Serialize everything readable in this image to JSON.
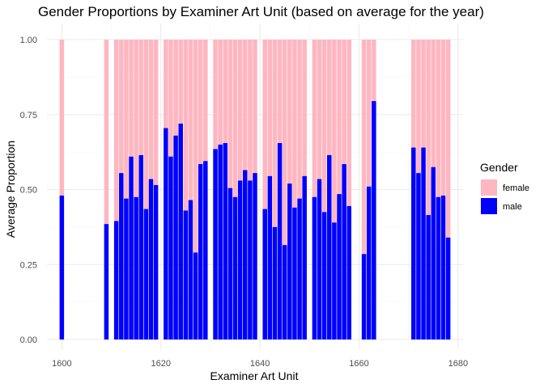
{
  "chart_data": {
    "type": "bar",
    "stacked": true,
    "title": "Gender Proportions by Examiner Art Unit (based on average for the year)",
    "xlabel": "Examiner Art Unit",
    "ylabel": "Average Proportion",
    "xlim": [
      1597,
      1681
    ],
    "ylim": [
      0,
      1
    ],
    "x_ticks": [
      "1600",
      "1620",
      "1640",
      "1660",
      "1680"
    ],
    "y_ticks": [
      "0.00",
      "0.25",
      "0.50",
      "0.75",
      "1.00"
    ],
    "legend": {
      "title": "Gender",
      "position": "right",
      "entries": [
        "female",
        "male"
      ]
    },
    "colors": {
      "female": "#FFB6C1",
      "male": "#0000FF",
      "grid_major": "#EBEBEB",
      "grid_minor": "#F5F5F5"
    },
    "x": [
      1600,
      1609,
      1611,
      1612,
      1613,
      1614,
      1615,
      1616,
      1617,
      1618,
      1619,
      1621,
      1622,
      1623,
      1624,
      1625,
      1626,
      1627,
      1628,
      1629,
      1631,
      1632,
      1633,
      1634,
      1635,
      1636,
      1637,
      1638,
      1639,
      1641,
      1642,
      1643,
      1644,
      1645,
      1646,
      1647,
      1648,
      1649,
      1651,
      1652,
      1653,
      1654,
      1655,
      1656,
      1657,
      1658,
      1661,
      1662,
      1663,
      1671,
      1672,
      1673,
      1674,
      1675,
      1676,
      1677,
      1678
    ],
    "series": [
      {
        "name": "male",
        "values": [
          0.48,
          0.385,
          0.395,
          0.555,
          0.47,
          0.61,
          0.475,
          0.615,
          0.435,
          0.535,
          0.515,
          0.705,
          0.61,
          0.68,
          0.72,
          0.43,
          0.465,
          0.29,
          0.585,
          0.595,
          0.635,
          0.65,
          0.655,
          0.505,
          0.475,
          0.53,
          0.565,
          0.53,
          0.555,
          0.435,
          0.545,
          0.375,
          0.655,
          0.315,
          0.52,
          0.44,
          0.47,
          0.545,
          0.475,
          0.535,
          0.425,
          0.615,
          0.39,
          0.485,
          0.585,
          0.445,
          0.285,
          0.51,
          0.795,
          0.64,
          0.555,
          0.64,
          0.415,
          0.575,
          0.475,
          0.48,
          0.34
        ]
      },
      {
        "name": "female",
        "values": [
          0.52,
          0.615,
          0.605,
          0.445,
          0.53,
          0.39,
          0.525,
          0.385,
          0.565,
          0.465,
          0.485,
          0.295,
          0.39,
          0.32,
          0.28,
          0.57,
          0.535,
          0.71,
          0.415,
          0.405,
          0.365,
          0.35,
          0.345,
          0.495,
          0.525,
          0.47,
          0.435,
          0.47,
          0.445,
          0.565,
          0.455,
          0.625,
          0.345,
          0.685,
          0.48,
          0.56,
          0.53,
          0.455,
          0.525,
          0.465,
          0.575,
          0.385,
          0.61,
          0.515,
          0.415,
          0.555,
          0.715,
          0.49,
          0.205,
          0.36,
          0.445,
          0.36,
          0.585,
          0.425,
          0.525,
          0.52,
          0.66
        ]
      }
    ]
  }
}
